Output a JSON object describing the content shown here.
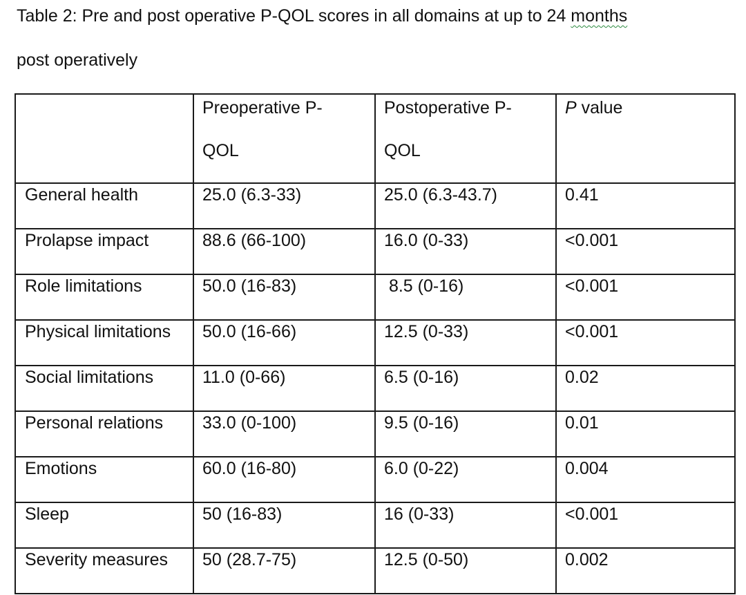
{
  "caption": {
    "line1_main": "Table 2: Pre and post operative P-QOL scores in all domains at up to 24 ",
    "line1_last": "months",
    "line2": "post operatively"
  },
  "table": {
    "headers": [
      {
        "line1": "",
        "line2": ""
      },
      {
        "line1": "Preoperative P-",
        "line2": "QOL"
      },
      {
        "line1": "Postoperative P-",
        "line2": "QOL"
      },
      {
        "italic": "P",
        "rest": " value"
      }
    ],
    "rows": [
      [
        "General health",
        "25.0 (6.3-33)",
        "25.0 (6.3-43.7)",
        "0.41"
      ],
      [
        "Prolapse impact",
        "88.6 (66-100)",
        "16.0 (0-33)",
        "<0.001"
      ],
      [
        "Role limitations",
        "50.0 (16-83)",
        " 8.5 (0-16)",
        "<0.001"
      ],
      [
        "Physical limitations",
        "50.0 (16-66)",
        "12.5 (0-33)",
        "<0.001"
      ],
      [
        "Social limitations",
        "11.0 (0-66)",
        "6.5 (0-16)",
        "0.02"
      ],
      [
        "Personal relations",
        "33.0 (0-100)",
        "9.5 (0-16)",
        "0.01"
      ],
      [
        "Emotions",
        "60.0 (16-80)",
        "6.0 (0-22)",
        "0.004"
      ],
      [
        "Sleep",
        "50 (16-83)",
        "16 (0-33)",
        "<0.001"
      ],
      [
        "Severity measures",
        "50 (28.7-75)",
        "12.5 (0-50)",
        "0.002"
      ]
    ]
  }
}
